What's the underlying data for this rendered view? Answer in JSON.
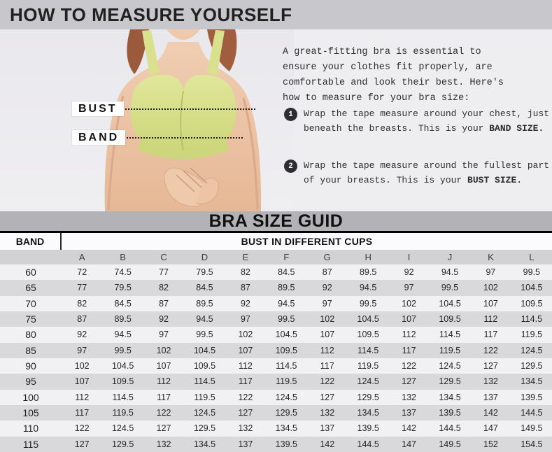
{
  "page_title": "HOW TO MEASURE YOURSELF",
  "colors": {
    "title_bar_bg": "#c8c7cb",
    "hero_bg": "#eeedf0",
    "guide_bar_bg": "#b3b2b6",
    "row_stripe_gray": "#d9d8da",
    "row_stripe_light": "#f1f0f2",
    "bra_color": "#d8e08c",
    "step_circle": "#2e2d30"
  },
  "figure": {
    "bust_label": "BUST",
    "band_label": "BAND"
  },
  "howto": {
    "intro_lines": [
      "A great-fitting bra is essential to",
      "ensure your clothes fit properly, are",
      "comfortable and look their best. Here's",
      "how to measure for your bra size:"
    ],
    "steps": [
      {
        "num": "1",
        "line1": "Wrap the tape measure around your chest, just",
        "line2": "beneath the breasts. This is your ",
        "line2_bold": "BAND SIZE."
      },
      {
        "num": "2",
        "line1": "Wrap the tape measure around the fullest part",
        "line2": "of your breasts. This is your ",
        "line2_bold": "BUST SIZE."
      }
    ]
  },
  "size_guide": {
    "title": "BRA SIZE GUID",
    "band_header": "BAND",
    "bust_header": "BUST IN DIFFERENT CUPS",
    "cup_letters": [
      "A",
      "B",
      "C",
      "D",
      "E",
      "F",
      "G",
      "H",
      "I",
      "J",
      "K",
      "L"
    ],
    "rows": [
      {
        "band": "60",
        "values": [
          "72",
          "74.5",
          "77",
          "79.5",
          "82",
          "84.5",
          "87",
          "89.5",
          "92",
          "94.5",
          "97",
          "99.5"
        ]
      },
      {
        "band": "65",
        "values": [
          "77",
          "79.5",
          "82",
          "84.5",
          "87",
          "89.5",
          "92",
          "94.5",
          "97",
          "99.5",
          "102",
          "104.5"
        ]
      },
      {
        "band": "70",
        "values": [
          "82",
          "84.5",
          "87",
          "89.5",
          "92",
          "94.5",
          "97",
          "99.5",
          "102",
          "104.5",
          "107",
          "109.5"
        ]
      },
      {
        "band": "75",
        "values": [
          "87",
          "89.5",
          "92",
          "94.5",
          "97",
          "99.5",
          "102",
          "104.5",
          "107",
          "109.5",
          "112",
          "114.5"
        ]
      },
      {
        "band": "80",
        "values": [
          "92",
          "94.5",
          "97",
          "99.5",
          "102",
          "104.5",
          "107",
          "109.5",
          "112",
          "114.5",
          "117",
          "119.5"
        ]
      },
      {
        "band": "85",
        "values": [
          "97",
          "99.5",
          "102",
          "104.5",
          "107",
          "109.5",
          "112",
          "114.5",
          "117",
          "119.5",
          "122",
          "124.5"
        ]
      },
      {
        "band": "90",
        "values": [
          "102",
          "104.5",
          "107",
          "109.5",
          "112",
          "114.5",
          "117",
          "119.5",
          "122",
          "124.5",
          "127",
          "129.5"
        ]
      },
      {
        "band": "95",
        "values": [
          "107",
          "109.5",
          "112",
          "114.5",
          "117",
          "119.5",
          "122",
          "124.5",
          "127",
          "129.5",
          "132",
          "134.5"
        ]
      },
      {
        "band": "100",
        "values": [
          "112",
          "114.5",
          "117",
          "119.5",
          "122",
          "124.5",
          "127",
          "129.5",
          "132",
          "134.5",
          "137",
          "139.5"
        ]
      },
      {
        "band": "105",
        "values": [
          "117",
          "119.5",
          "122",
          "124.5",
          "127",
          "129.5",
          "132",
          "134.5",
          "137",
          "139.5",
          "142",
          "144.5"
        ]
      },
      {
        "band": "110",
        "values": [
          "122",
          "124.5",
          "127",
          "129.5",
          "132",
          "134.5",
          "137",
          "139.5",
          "142",
          "144.5",
          "147",
          "149.5"
        ]
      },
      {
        "band": "115",
        "values": [
          "127",
          "129.5",
          "132",
          "134.5",
          "137",
          "139.5",
          "142",
          "144.5",
          "147",
          "149.5",
          "152",
          "154.5"
        ]
      }
    ]
  }
}
